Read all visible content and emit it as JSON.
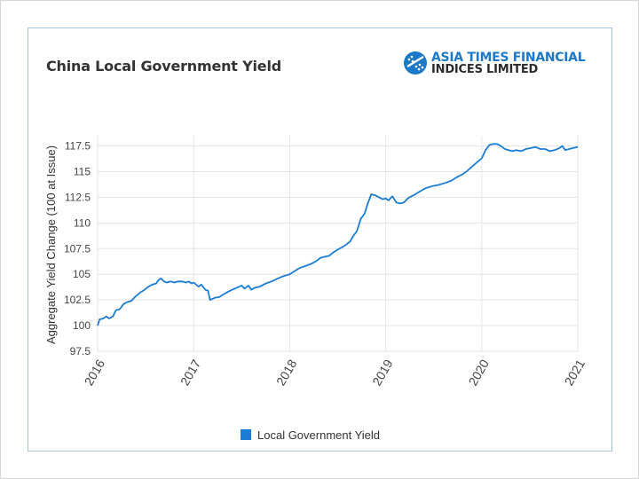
{
  "title": "China Local Government Yield",
  "logo": {
    "line1": "ASIA TIMES FINANCIAL",
    "line2": "INDICES LIMITED",
    "mark_icon": "atf-globe-logo-icon"
  },
  "colors": {
    "series": "#1a7cd5",
    "grid": "#e3e3e3",
    "frame": "#9fc3e3",
    "brand": "#1c78c8"
  },
  "chart_data": {
    "type": "line",
    "title": "China Local Government Yield",
    "xlabel": "",
    "ylabel": "Aggregate Yield Change (100 at Issue)",
    "xlim": [
      2016,
      2021
    ],
    "ylim": [
      97.5,
      118.5
    ],
    "x_ticks": [
      {
        "value": 2016,
        "label": "2016"
      },
      {
        "value": 2017,
        "label": "2017"
      },
      {
        "value": 2018,
        "label": "2018"
      },
      {
        "value": 2019,
        "label": "2019"
      },
      {
        "value": 2020,
        "label": "2020"
      },
      {
        "value": 2021,
        "label": "2021"
      }
    ],
    "y_ticks": [
      {
        "value": 97.5,
        "label": "97.5"
      },
      {
        "value": 100,
        "label": "100"
      },
      {
        "value": 102.5,
        "label": "102.5"
      },
      {
        "value": 105,
        "label": "105"
      },
      {
        "value": 107.5,
        "label": "107.5"
      },
      {
        "value": 110,
        "label": "110"
      },
      {
        "value": 112.5,
        "label": "112.5"
      },
      {
        "value": 115,
        "label": "115"
      },
      {
        "value": 117.5,
        "label": "117.5"
      }
    ],
    "grid": true,
    "legend_position": "bottom-center",
    "series": [
      {
        "name": "Local Government Yield",
        "color": "#1a7cd5",
        "points": [
          [
            2016.0,
            100.0
          ],
          [
            2016.02,
            100.6
          ],
          [
            2016.06,
            100.7
          ],
          [
            2016.09,
            100.9
          ],
          [
            2016.12,
            100.7
          ],
          [
            2016.16,
            100.9
          ],
          [
            2016.19,
            101.5
          ],
          [
            2016.23,
            101.6
          ],
          [
            2016.27,
            102.1
          ],
          [
            2016.31,
            102.3
          ],
          [
            2016.35,
            102.4
          ],
          [
            2016.39,
            102.8
          ],
          [
            2016.44,
            103.2
          ],
          [
            2016.49,
            103.5
          ],
          [
            2016.53,
            103.8
          ],
          [
            2016.57,
            104.0
          ],
          [
            2016.61,
            104.1
          ],
          [
            2016.63,
            104.4
          ],
          [
            2016.66,
            104.6
          ],
          [
            2016.69,
            104.3
          ],
          [
            2016.72,
            104.2
          ],
          [
            2016.76,
            104.3
          ],
          [
            2016.8,
            104.2
          ],
          [
            2016.84,
            104.3
          ],
          [
            2016.88,
            104.3
          ],
          [
            2016.92,
            104.2
          ],
          [
            2016.95,
            104.3
          ],
          [
            2016.98,
            104.1
          ],
          [
            2017.0,
            104.2
          ],
          [
            2017.05,
            103.8
          ],
          [
            2017.08,
            104.0
          ],
          [
            2017.12,
            103.5
          ],
          [
            2017.15,
            103.4
          ],
          [
            2017.17,
            102.5
          ],
          [
            2017.22,
            102.7
          ],
          [
            2017.27,
            102.8
          ],
          [
            2017.32,
            103.1
          ],
          [
            2017.38,
            103.4
          ],
          [
            2017.45,
            103.7
          ],
          [
            2017.5,
            103.9
          ],
          [
            2017.53,
            103.6
          ],
          [
            2017.57,
            103.9
          ],
          [
            2017.6,
            103.5
          ],
          [
            2017.64,
            103.7
          ],
          [
            2017.69,
            103.8
          ],
          [
            2017.75,
            104.1
          ],
          [
            2017.81,
            104.3
          ],
          [
            2017.88,
            104.6
          ],
          [
            2017.93,
            104.8
          ],
          [
            2018.0,
            105.0
          ],
          [
            2018.05,
            105.3
          ],
          [
            2018.1,
            105.6
          ],
          [
            2018.16,
            105.8
          ],
          [
            2018.22,
            106.0
          ],
          [
            2018.28,
            106.3
          ],
          [
            2018.32,
            106.6
          ],
          [
            2018.36,
            106.7
          ],
          [
            2018.41,
            106.8
          ],
          [
            2018.45,
            107.1
          ],
          [
            2018.5,
            107.4
          ],
          [
            2018.54,
            107.6
          ],
          [
            2018.59,
            107.9
          ],
          [
            2018.63,
            108.2
          ],
          [
            2018.66,
            108.7
          ],
          [
            2018.7,
            109.2
          ],
          [
            2018.74,
            110.4
          ],
          [
            2018.78,
            110.9
          ],
          [
            2018.81,
            111.8
          ],
          [
            2018.85,
            112.8
          ],
          [
            2018.89,
            112.7
          ],
          [
            2018.93,
            112.5
          ],
          [
            2018.97,
            112.3
          ],
          [
            2019.0,
            112.4
          ],
          [
            2019.03,
            112.2
          ],
          [
            2019.07,
            112.6
          ],
          [
            2019.11,
            112.0
          ],
          [
            2019.15,
            111.9
          ],
          [
            2019.19,
            112.0
          ],
          [
            2019.23,
            112.4
          ],
          [
            2019.29,
            112.7
          ],
          [
            2019.36,
            113.1
          ],
          [
            2019.42,
            113.4
          ],
          [
            2019.49,
            113.6
          ],
          [
            2019.55,
            113.7
          ],
          [
            2019.62,
            113.9
          ],
          [
            2019.68,
            114.1
          ],
          [
            2019.73,
            114.4
          ],
          [
            2019.79,
            114.7
          ],
          [
            2019.84,
            115.0
          ],
          [
            2019.9,
            115.5
          ],
          [
            2019.95,
            115.9
          ],
          [
            2020.0,
            116.3
          ],
          [
            2020.04,
            117.1
          ],
          [
            2020.08,
            117.6
          ],
          [
            2020.12,
            117.7
          ],
          [
            2020.16,
            117.7
          ],
          [
            2020.2,
            117.5
          ],
          [
            2020.24,
            117.2
          ],
          [
            2020.28,
            117.1
          ],
          [
            2020.32,
            117.0
          ],
          [
            2020.36,
            117.1
          ],
          [
            2020.41,
            117.0
          ],
          [
            2020.46,
            117.2
          ],
          [
            2020.51,
            117.3
          ],
          [
            2020.56,
            117.4
          ],
          [
            2020.61,
            117.2
          ],
          [
            2020.66,
            117.2
          ],
          [
            2020.71,
            117.0
          ],
          [
            2020.76,
            117.1
          ],
          [
            2020.81,
            117.3
          ],
          [
            2020.84,
            117.5
          ],
          [
            2020.87,
            117.1
          ],
          [
            2020.91,
            117.2
          ],
          [
            2020.95,
            117.3
          ],
          [
            2021.0,
            117.4
          ]
        ]
      }
    ]
  }
}
